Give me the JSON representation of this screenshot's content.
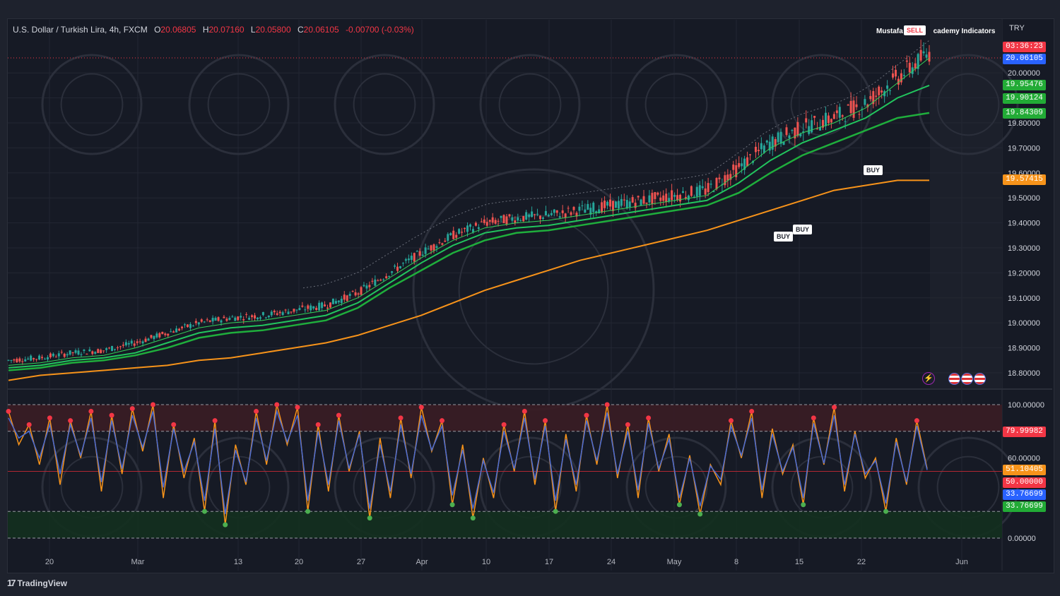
{
  "header": {
    "symbol": "U.S. Dollar / Turkish Lira, 4h, FXCM",
    "open_key": "O",
    "open": "20.06805",
    "high_key": "H",
    "high": "20.07160",
    "low_key": "L",
    "low": "20.05800",
    "close_key": "C",
    "close": "20.06105",
    "change": "-0.00700 (-0.03%)",
    "indicator": "Mustafa",
    "indicator_suffix": "cademy Indicators",
    "currency": "TRY"
  },
  "price_tags": {
    "countdown": "03:36:23",
    "last": "20.06105",
    "ma1": "19.95476",
    "ma2": "19.90124",
    "ma3": "19.84309",
    "ma_long": "19.57415"
  },
  "osc_tags": {
    "t1": "79.99982",
    "t2": "51.10405",
    "t3": "50.00000",
    "t4": "33.76699",
    "t5": "33.76699"
  },
  "signals": {
    "buy1": "BUY",
    "buy2": "BUY",
    "buy3": "BUY",
    "sell": "SELL"
  },
  "branding": "TradingView",
  "colors": {
    "up": "#26a69a",
    "down": "#ef5350",
    "ma_green": "#22c55e",
    "ma_orange": "#f7931a",
    "osc_orange": "#f7931a",
    "osc_blue": "#4a6cd4",
    "tag_red": "#f23645",
    "tag_blue": "#2962ff",
    "tag_green": "#22ab36",
    "tag_orange": "#f7931a"
  },
  "chart_data": [
    {
      "type": "line",
      "title": "U.S. Dollar / Turkish Lira, 4h, FXCM",
      "ylabel": "TRY",
      "x_ticks": [
        "20",
        "Mar",
        "13",
        "20",
        "27",
        "Apr",
        "10",
        "17",
        "24",
        "May",
        "8",
        "15",
        "22",
        "Jun"
      ],
      "y_ticks": [
        "20.00000",
        "19.90000",
        "19.80000",
        "19.70000",
        "19.60000",
        "19.50000",
        "19.40000",
        "19.30000",
        "19.20000",
        "19.10000",
        "19.00000",
        "18.90000",
        "18.80000"
      ],
      "ylim": [
        18.75,
        20.1
      ],
      "series": [
        {
          "values": [
            18.83,
            18.84,
            18.86,
            18.87,
            18.9,
            18.94,
            18.98,
            19.0,
            19.01,
            19.03,
            19.05,
            19.1,
            19.18,
            19.26,
            19.33,
            19.38,
            19.4,
            19.41,
            19.43,
            19.45,
            19.47,
            19.49,
            19.51,
            19.6,
            19.7,
            19.76,
            19.8,
            19.86,
            19.96,
            20.06
          ]
        },
        {
          "values": [
            18.82,
            18.83,
            18.85,
            18.86,
            18.88,
            18.92,
            18.96,
            18.98,
            18.99,
            19.01,
            19.03,
            19.08,
            19.16,
            19.24,
            19.31,
            19.36,
            19.38,
            19.39,
            19.41,
            19.43,
            19.45,
            19.47,
            19.49,
            19.56,
            19.65,
            19.72,
            19.77,
            19.82,
            19.9,
            19.95
          ]
        },
        {
          "values": [
            18.81,
            18.82,
            18.84,
            18.85,
            18.87,
            18.9,
            18.94,
            18.96,
            18.97,
            18.99,
            19.01,
            19.06,
            19.14,
            19.21,
            19.28,
            19.33,
            19.36,
            19.37,
            19.39,
            19.41,
            19.43,
            19.45,
            19.47,
            19.52,
            19.6,
            19.67,
            19.72,
            19.77,
            19.82,
            19.84
          ]
        },
        {
          "values": [
            18.77,
            18.79,
            18.8,
            18.81,
            18.82,
            18.83,
            18.85,
            18.86,
            18.88,
            18.9,
            18.92,
            18.95,
            18.99,
            19.03,
            19.08,
            19.13,
            19.17,
            19.21,
            19.25,
            19.28,
            19.31,
            19.34,
            19.37,
            19.41,
            19.45,
            19.49,
            19.53,
            19.55,
            19.57,
            19.57
          ]
        }
      ]
    },
    {
      "type": "line",
      "y_ticks": [
        "100.00000",
        "60.00000",
        "0.00000"
      ],
      "ylim": [
        0,
        100
      ],
      "levels": [
        100,
        80,
        50,
        20,
        0
      ],
      "series": [
        {
          "values": [
            95,
            70,
            85,
            55,
            90,
            40,
            88,
            60,
            95,
            35,
            92,
            48,
            97,
            65,
            100,
            30,
            85,
            45,
            75,
            20,
            88,
            10,
            70,
            40,
            95,
            55,
            100,
            70,
            98,
            20,
            85,
            35,
            92,
            50,
            80,
            15,
            75,
            30,
            90,
            45,
            98,
            65,
            88,
            25,
            70,
            15,
            60,
            30,
            85,
            50,
            95,
            40,
            88,
            20,
            78,
            35,
            92,
            55,
            100,
            45,
            85,
            30,
            90,
            50,
            78,
            25,
            62,
            18,
            55,
            40,
            88,
            60,
            95,
            30,
            82,
            48,
            70,
            25,
            90,
            55,
            98,
            35,
            80,
            45,
            60,
            20,
            75,
            40,
            88,
            52
          ]
        },
        {
          "values": [
            90,
            75,
            80,
            60,
            85,
            48,
            85,
            62,
            90,
            42,
            88,
            52,
            92,
            68,
            95,
            38,
            82,
            50,
            72,
            28,
            82,
            18,
            66,
            42,
            90,
            58,
            95,
            72,
            92,
            28,
            80,
            40,
            88,
            52,
            78,
            22,
            70,
            35,
            85,
            48,
            92,
            66,
            84,
            32,
            66,
            22,
            58,
            34,
            80,
            52,
            90,
            44,
            84,
            28,
            74,
            40,
            88,
            58,
            94,
            48,
            80,
            36,
            86,
            52,
            74,
            30,
            60,
            24,
            54,
            44,
            84,
            62,
            90,
            36,
            78,
            50,
            68,
            30,
            86,
            56,
            92,
            40,
            78,
            48,
            58,
            26,
            72,
            42,
            84,
            51
          ]
        }
      ]
    }
  ]
}
